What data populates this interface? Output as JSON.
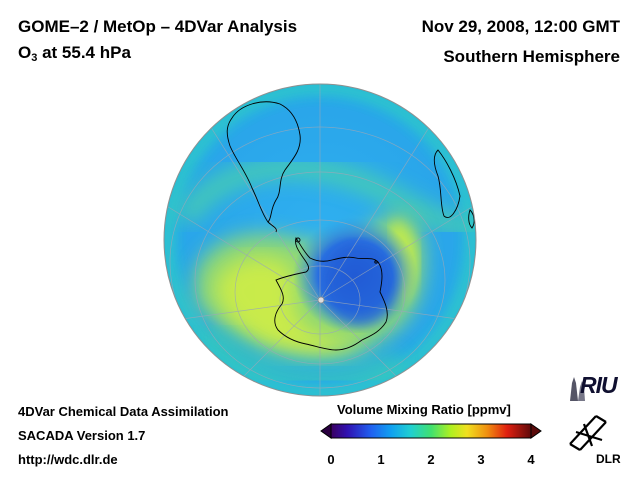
{
  "header": {
    "title": "GOME–2 / MetOp – 4DVar Analysis",
    "subtitle_prefix": "O",
    "subtitle_sub": "3",
    "subtitle_suffix": " at 55.4 hPa",
    "date": "Nov 29, 2008, 12:00 GMT",
    "hemisphere": "Southern Hemisphere"
  },
  "footer": {
    "line1": "4DVar Chemical Data Assimilation",
    "line2": "SACADA Version 1.7",
    "line3": "http://wdc.dlr.de"
  },
  "colorbar": {
    "title": "Volume Mixing Ratio [ppmv]",
    "ticks": [
      "0",
      "1",
      "2",
      "3",
      "4"
    ],
    "min": 0,
    "max": 4,
    "colors": [
      "#2a0040",
      "#3010a0",
      "#2050e0",
      "#1090f0",
      "#20c0e0",
      "#30d0a0",
      "#60e040",
      "#c0f020",
      "#f0e020",
      "#f09010",
      "#e03010",
      "#a01010",
      "#5a0a0a"
    ]
  },
  "logos": {
    "riu": "RIU",
    "dlr": "DLR"
  },
  "map": {
    "projection": "orthographic",
    "hemisphere_view": "south-polar",
    "colors": {
      "ocean_base": "#2fa0ea",
      "ozone_hole": "#2a70d8",
      "collar_high": "#b8e040",
      "collar_mid": "#40d0a0",
      "coast": "#000000",
      "grid": "#9aa8b0"
    }
  }
}
